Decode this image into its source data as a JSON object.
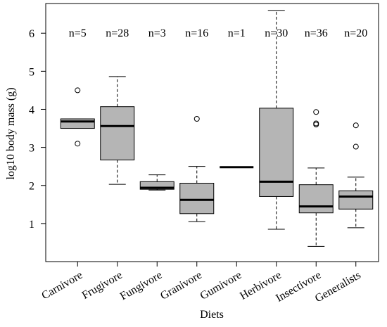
{
  "chart_data": {
    "type": "box",
    "x_label": "Diets",
    "y_label": "log10 body mass (g)",
    "categories": [
      "Carnivore",
      "Frugivore",
      "Fungivore",
      "Granivore",
      "Gumivore",
      "Herbivore",
      "Insectivore",
      "Generalists"
    ],
    "n_labels": [
      "n=5",
      "n=28",
      "n=3",
      "n=16",
      "n=1",
      "n=30",
      "n=36",
      "n=20"
    ],
    "min": [
      3.5,
      2.03,
      1.88,
      1.05,
      2.48,
      0.85,
      0.4,
      0.89
    ],
    "q1": [
      3.5,
      2.67,
      1.9,
      1.26,
      2.48,
      1.71,
      1.28,
      1.38
    ],
    "median": [
      3.68,
      3.56,
      1.94,
      1.62,
      2.48,
      2.1,
      1.45,
      1.71
    ],
    "q3": [
      3.75,
      4.07,
      2.1,
      2.06,
      2.48,
      4.03,
      2.02,
      1.86
    ],
    "max": [
      3.75,
      4.86,
      2.28,
      2.5,
      2.48,
      6.6,
      2.46,
      2.22
    ],
    "outliers": [
      [
        4.5,
        3.1
      ],
      [],
      [],
      [
        3.75
      ],
      [],
      [],
      [
        3.93,
        3.63,
        3.6
      ],
      [
        3.58,
        3.02
      ]
    ],
    "color": "#b5b5b5",
    "ylim": [
      0,
      6.78
    ],
    "yticks": [
      1,
      2,
      3,
      4,
      5,
      6
    ]
  }
}
